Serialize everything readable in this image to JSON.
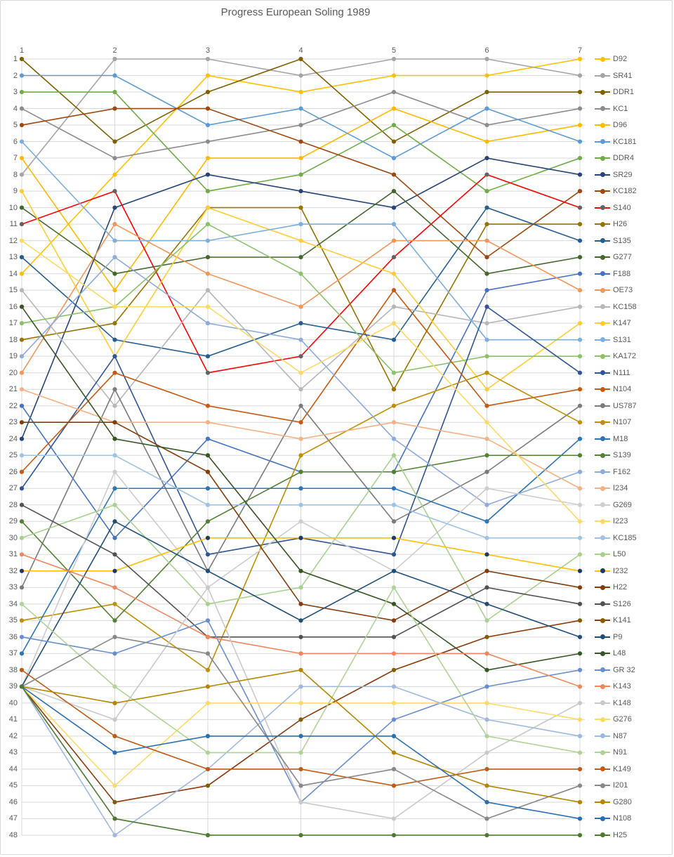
{
  "title": "Progress European Soling 1989",
  "axes": {
    "x_ticks": [
      "1",
      "2",
      "3",
      "4",
      "5",
      "6",
      "7"
    ],
    "rank_ticks": [
      "1",
      "2",
      "3",
      "4",
      "5",
      "6",
      "7",
      "8",
      "9",
      "10",
      "11",
      "12",
      "13",
      "14",
      "15",
      "16",
      "17",
      "18",
      "19",
      "20",
      "21",
      "22",
      "23",
      "24",
      "25",
      "26",
      "27",
      "28",
      "29",
      "30",
      "31",
      "32",
      "33",
      "34",
      "35",
      "36",
      "37",
      "38",
      "39",
      "40",
      "41",
      "42",
      "43",
      "44",
      "45",
      "46",
      "47",
      "48"
    ]
  },
  "chart_data": {
    "type": "line",
    "x": [
      1,
      2,
      3,
      4,
      5,
      6,
      7
    ],
    "xlabel": "",
    "ylabel": "",
    "y_inverted": true,
    "ylim": [
      1,
      48
    ],
    "grid": true,
    "legend_position": "right",
    "grid_color": "#d9d9d9",
    "text_color": "#595959",
    "series": [
      {
        "name": "D92",
        "color": "#FFC000",
        "marker": "#FFC000",
        "values": [
          14,
          8,
          2,
          3,
          2,
          2,
          1
        ]
      },
      {
        "name": "SR41",
        "color": "#A5A5A5",
        "marker": "#A5A5A5",
        "values": [
          8,
          1,
          1,
          2,
          1,
          1,
          2
        ]
      },
      {
        "name": "DDR1",
        "color": "#7F6000",
        "marker": "#7F6000",
        "values": [
          1,
          6,
          3,
          1,
          6,
          3,
          3
        ]
      },
      {
        "name": "KC1",
        "color": "#8C8C8C",
        "marker": "#8C8C8C",
        "values": [
          4,
          7,
          6,
          5,
          3,
          5,
          4
        ]
      },
      {
        "name": "D96",
        "color": "#FFB900",
        "marker": "#FFB900",
        "values": [
          7,
          15,
          7,
          7,
          4,
          6,
          5
        ]
      },
      {
        "name": "KC181",
        "color": "#5B9BD5",
        "marker": "#5B9BD5",
        "values": [
          2,
          2,
          5,
          4,
          7,
          4,
          6
        ]
      },
      {
        "name": "DDR4",
        "color": "#70AD47",
        "marker": "#70AD47",
        "values": [
          3,
          3,
          9,
          8,
          5,
          9,
          7
        ]
      },
      {
        "name": "SR29",
        "color": "#264478",
        "marker": "#264478",
        "values": [
          24,
          10,
          8,
          9,
          10,
          7,
          8
        ]
      },
      {
        "name": "KC182",
        "color": "#9E480E",
        "marker": "#9E480E",
        "values": [
          5,
          4,
          4,
          6,
          8,
          13,
          9
        ]
      },
      {
        "name": "S140",
        "color": "#FF0000",
        "marker": "#636363",
        "values": [
          11,
          9,
          20,
          19,
          13,
          8,
          10
        ]
      },
      {
        "name": "H26",
        "color": "#997300",
        "marker": "#997300",
        "values": [
          18,
          17,
          10,
          10,
          21,
          11,
          11
        ]
      },
      {
        "name": "S135",
        "color": "#255E91",
        "marker": "#255E91",
        "values": [
          13,
          18,
          19,
          17,
          18,
          10,
          12
        ]
      },
      {
        "name": "G277",
        "color": "#43682B",
        "marker": "#43682B",
        "values": [
          10,
          14,
          13,
          13,
          9,
          14,
          13
        ]
      },
      {
        "name": "F188",
        "color": "#4472C4",
        "marker": "#4472C4",
        "values": [
          22,
          30,
          24,
          26,
          26,
          15,
          14
        ]
      },
      {
        "name": "OE73",
        "color": "#F1975A",
        "marker": "#F1975A",
        "values": [
          20,
          11,
          14,
          16,
          12,
          12,
          15
        ]
      },
      {
        "name": "KC158",
        "color": "#B7B7B7",
        "marker": "#B7B7B7",
        "values": [
          15,
          22,
          15,
          21,
          16,
          17,
          16
        ]
      },
      {
        "name": "K147",
        "color": "#FFCD33",
        "marker": "#FFCD33",
        "values": [
          9,
          19,
          10,
          12,
          14,
          21,
          17
        ]
      },
      {
        "name": "S131",
        "color": "#7CAFDD",
        "marker": "#7CAFDD",
        "values": [
          6,
          12,
          12,
          11,
          11,
          18,
          18
        ]
      },
      {
        "name": "KA172",
        "color": "#8CC168",
        "marker": "#8CC168",
        "values": [
          17,
          16,
          11,
          14,
          20,
          19,
          19
        ]
      },
      {
        "name": "N111",
        "color": "#2F5597",
        "marker": "#2F5597",
        "values": [
          27,
          19,
          31,
          30,
          31,
          16,
          20
        ]
      },
      {
        "name": "N104",
        "color": "#C55A11",
        "marker": "#C55A11",
        "values": [
          26,
          20,
          22,
          23,
          15,
          22,
          21
        ]
      },
      {
        "name": "US787",
        "color": "#7B7B7B",
        "marker": "#7B7B7B",
        "values": [
          33,
          21,
          32,
          22,
          29,
          26,
          22
        ]
      },
      {
        "name": "N107",
        "color": "#BF8F00",
        "marker": "#BF8F00",
        "values": [
          35,
          34,
          38,
          25,
          22,
          20,
          23
        ]
      },
      {
        "name": "M18",
        "color": "#2E75B6",
        "marker": "#2E75B6",
        "values": [
          37,
          27,
          27,
          27,
          27,
          29,
          24
        ]
      },
      {
        "name": "S139",
        "color": "#538135",
        "marker": "#538135",
        "values": [
          29,
          35,
          29,
          26,
          26,
          25,
          25
        ]
      },
      {
        "name": "F162",
        "color": "#8FAADC",
        "marker": "#8FAADC",
        "values": [
          19,
          13,
          17,
          18,
          24,
          28,
          26
        ]
      },
      {
        "name": "I234",
        "color": "#F4B183",
        "marker": "#F4B183",
        "values": [
          21,
          23,
          23,
          24,
          23,
          24,
          27
        ]
      },
      {
        "name": "G269",
        "color": "#CFCDCE",
        "marker": "#CFCDCE",
        "values": [
          39,
          26,
          33,
          29,
          32,
          27,
          28
        ]
      },
      {
        "name": "I223",
        "color": "#FFD966",
        "marker": "#FFD966",
        "values": [
          12,
          16,
          16,
          20,
          17,
          23,
          29
        ]
      },
      {
        "name": "KC185",
        "color": "#9DC3E6",
        "marker": "#9DC3E6",
        "values": [
          25,
          25,
          28,
          28,
          28,
          30,
          30
        ]
      },
      {
        "name": "L50",
        "color": "#A9D18E",
        "marker": "#A9D18E",
        "values": [
          30,
          28,
          34,
          33,
          25,
          35,
          31
        ]
      },
      {
        "name": "I232",
        "color": "#FFC000",
        "marker": "#1F3864",
        "values": [
          32,
          32,
          30,
          30,
          30,
          31,
          32
        ]
      },
      {
        "name": "H22",
        "color": "#843C0C",
        "marker": "#843C0C",
        "values": [
          23,
          23,
          26,
          34,
          35,
          32,
          33
        ]
      },
      {
        "name": "S126",
        "color": "#525252",
        "marker": "#525252",
        "values": [
          28,
          31,
          36,
          36,
          36,
          33,
          34
        ]
      },
      {
        "name": "K141",
        "color": "#8A3A0B",
        "marker": "#7F6000",
        "values": [
          39,
          46,
          45,
          41,
          38,
          36,
          35
        ]
      },
      {
        "name": "P9",
        "color": "#1F4E79",
        "marker": "#1F4E79",
        "values": [
          39,
          29,
          32,
          35,
          32,
          34,
          36
        ]
      },
      {
        "name": "L48",
        "color": "#375623",
        "marker": "#375623",
        "values": [
          16,
          24,
          25,
          32,
          34,
          38,
          37
        ]
      },
      {
        "name": "GR 32",
        "color": "#698ED0",
        "marker": "#698ED0",
        "values": [
          36,
          37,
          35,
          46,
          41,
          39,
          38
        ]
      },
      {
        "name": "K143",
        "color": "#F0875C",
        "marker": "#F0875C",
        "values": [
          31,
          33,
          36,
          37,
          37,
          37,
          39
        ]
      },
      {
        "name": "K148",
        "color": "#C9C9C9",
        "marker": "#C9C9C9",
        "values": [
          39,
          41,
          33,
          46,
          47,
          43,
          40
        ]
      },
      {
        "name": "G276",
        "color": "#FFDA65",
        "marker": "#FFDA65",
        "values": [
          39,
          45,
          40,
          40,
          40,
          40,
          41
        ]
      },
      {
        "name": "N87",
        "color": "#9FB8E1",
        "marker": "#9FB8E1",
        "values": [
          39,
          48,
          44,
          39,
          39,
          41,
          42
        ]
      },
      {
        "name": "N91",
        "color": "#AFD495",
        "marker": "#AFD495",
        "values": [
          34,
          39,
          43,
          43,
          33,
          42,
          43
        ]
      },
      {
        "name": "K149",
        "color": "#BF5B17",
        "marker": "#BF5B17",
        "values": [
          38,
          42,
          44,
          44,
          45,
          44,
          44
        ]
      },
      {
        "name": "I201",
        "color": "#888888",
        "marker": "#888888",
        "values": [
          39,
          36,
          37,
          45,
          44,
          47,
          45
        ]
      },
      {
        "name": "G280",
        "color": "#B38600",
        "marker": "#B38600",
        "values": [
          39,
          40,
          39,
          38,
          43,
          45,
          46
        ]
      },
      {
        "name": "N108",
        "color": "#2970B0",
        "marker": "#2970B0",
        "values": [
          39,
          43,
          42,
          42,
          42,
          46,
          47
        ]
      },
      {
        "name": "H25",
        "color": "#4E7A2F",
        "marker": "#4E7A2F",
        "values": [
          39,
          47,
          48,
          48,
          48,
          48,
          48
        ]
      }
    ]
  }
}
